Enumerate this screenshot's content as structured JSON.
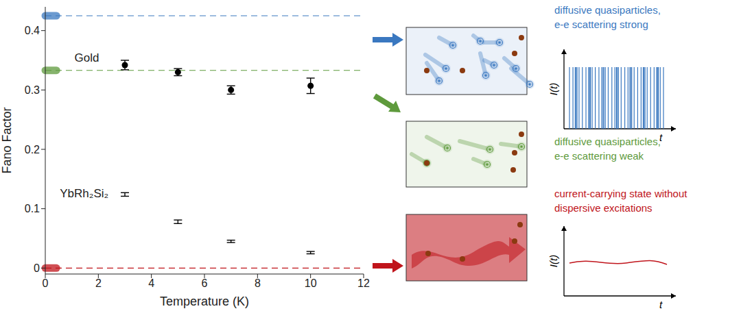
{
  "chart_data": {
    "type": "scatter",
    "xlabel": "Temperature (K)",
    "ylabel": "Fano Factor",
    "xlim": [
      0,
      12
    ],
    "xticks": [
      0,
      2,
      4,
      6,
      8,
      10,
      12
    ],
    "ylim": [
      -0.01,
      0.44
    ],
    "yticks": [
      0,
      0.1,
      0.2,
      0.3,
      0.4
    ],
    "grid": false,
    "series": [
      {
        "name": "Gold",
        "color": "#000000",
        "marker": "circle",
        "x": [
          3,
          5,
          7,
          10
        ],
        "values": [
          0.342,
          0.33,
          0.3,
          0.307
        ],
        "errors": [
          0.008,
          0.006,
          0.007,
          0.013
        ]
      },
      {
        "name": "YbRh₂Si₂",
        "color": "#000000",
        "marker": "none",
        "x": [
          3,
          5,
          7,
          10
        ],
        "values": [
          0.124,
          0.078,
          0.045,
          0.026
        ],
        "errors": [
          0.003,
          0.003,
          0.002,
          0.002
        ]
      }
    ],
    "reference_lines": [
      {
        "value": 0.425,
        "color": "#3a78c0",
        "line_style": "dashed"
      },
      {
        "value": 0.333,
        "color": "#5e9a3c",
        "line_style": "dashed"
      },
      {
        "value": 0,
        "color": "#c0141b",
        "line_style": "dashed"
      }
    ]
  },
  "diagram": {
    "panels": [
      {
        "color": "#3a78c0",
        "lines": [
          "diffusive quasiparticles,",
          "e-e scattering strong"
        ],
        "ylabel": "I(t)",
        "xlabel": "t"
      },
      {
        "color": "#5e9a3c",
        "lines": [
          "diffusive quasiparticles,",
          "e-e scattering weak"
        ]
      },
      {
        "color": "#c0141b",
        "lines": [
          "current-carrying state without",
          "dispersive excitations"
        ],
        "ylabel": "I(t)",
        "xlabel": "t"
      }
    ]
  }
}
